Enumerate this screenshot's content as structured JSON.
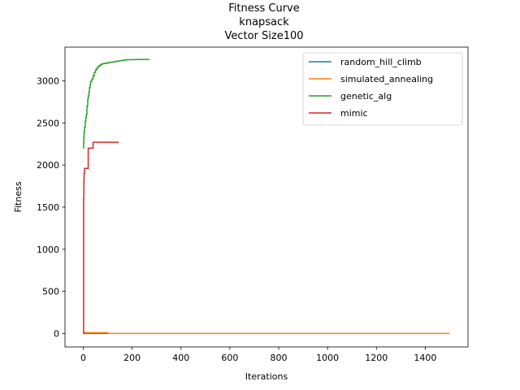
{
  "chart_data": {
    "type": "line",
    "title_lines": [
      "Fitness Curve",
      "knapsack",
      "Vector Size100"
    ],
    "xlabel": "Iterations",
    "ylabel": "Fitness",
    "xlim": [
      -75,
      1575
    ],
    "ylim": [
      -160,
      3400
    ],
    "xticks": [
      0,
      200,
      400,
      600,
      800,
      1000,
      1200,
      1400
    ],
    "yticks": [
      0,
      500,
      1000,
      1500,
      2000,
      2500,
      3000
    ],
    "grid": false,
    "legend_position": "top-right",
    "series": [
      {
        "name": "random_hill_climb",
        "color": "#1f77b4",
        "step": true,
        "x": [
          0,
          100
        ],
        "y": [
          0,
          0
        ]
      },
      {
        "name": "simulated_annealing",
        "color": "#ff7f0e",
        "step": true,
        "x": [
          0,
          1,
          2,
          3,
          5,
          100,
          1500
        ],
        "y": [
          0,
          5,
          8,
          10,
          10,
          0,
          0
        ]
      },
      {
        "name": "genetic_alg",
        "color": "#2ca02c",
        "step": true,
        "x": [
          0,
          1,
          2,
          3,
          5,
          8,
          10,
          12,
          15,
          18,
          20,
          23,
          25,
          28,
          30,
          33,
          35,
          40,
          45,
          50,
          55,
          60,
          65,
          70,
          75,
          80,
          90,
          100,
          110,
          120,
          130,
          140,
          150,
          160,
          170,
          180,
          200,
          220,
          240,
          270
        ],
        "y": [
          2200,
          2260,
          2330,
          2400,
          2450,
          2520,
          2560,
          2600,
          2700,
          2780,
          2820,
          2870,
          2920,
          2960,
          2990,
          3000,
          3020,
          3060,
          3100,
          3130,
          3150,
          3170,
          3180,
          3190,
          3200,
          3205,
          3210,
          3215,
          3220,
          3225,
          3230,
          3235,
          3240,
          3245,
          3248,
          3250,
          3252,
          3253,
          3254,
          3255
        ]
      },
      {
        "name": "mimic",
        "color": "#d62728",
        "step": true,
        "x": [
          0,
          1,
          2,
          3,
          5,
          8,
          10,
          15,
          20,
          25,
          30,
          35,
          40,
          50,
          60,
          80,
          100,
          120,
          145
        ],
        "y": [
          0,
          1600,
          1800,
          1900,
          1960,
          1960,
          1960,
          1960,
          2200,
          2200,
          2200,
          2200,
          2270,
          2270,
          2270,
          2270,
          2270,
          2270,
          2270
        ]
      }
    ]
  }
}
